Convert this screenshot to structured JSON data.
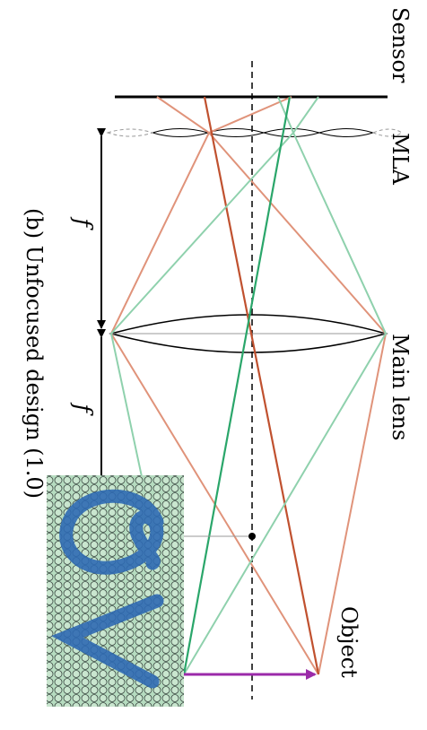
{
  "labels": {
    "sensor": "Sensor",
    "mla": "MLA",
    "main_lens": "Main lens",
    "object": "Object",
    "focal_top": "f",
    "focal_bottom": "f",
    "caption": "(b) Unfocused design (1.0)"
  },
  "inset": {
    "letters": "ev"
  },
  "colors": {
    "orange_ray": "#e0937a",
    "orange_chief": "#c0512f",
    "green_ray": "#8fd1ad",
    "green_chief": "#2aa66a",
    "object_arrow": "#9b2aa9",
    "axis": "#000000",
    "inset_background": "#b6dcc0",
    "inset_cell": "#c9e6cf",
    "inset_blue": "#2f6ab3"
  }
}
